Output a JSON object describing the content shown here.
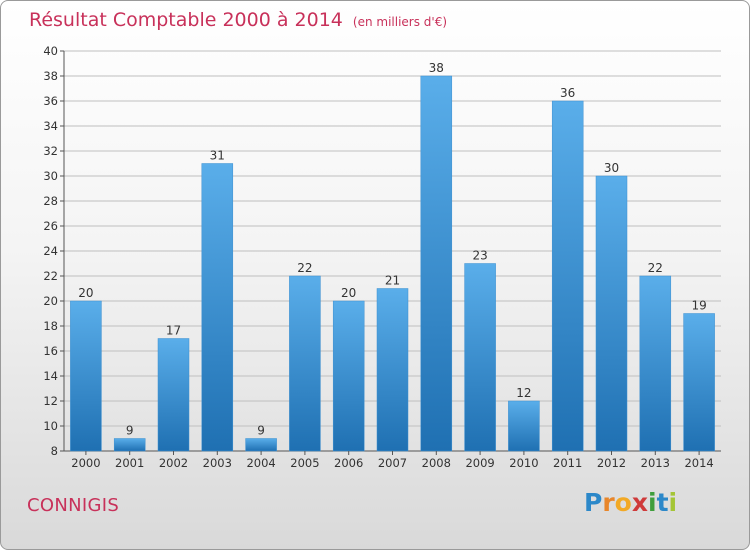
{
  "header": {
    "title": "Résultat Comptable 2000 à 2014",
    "unit": "(en milliers d'€)"
  },
  "footer": {
    "commune": "CONNIGIS",
    "logo_letters": [
      "P",
      "r",
      "o",
      "x",
      "i",
      "t",
      "i"
    ]
  },
  "colors": {
    "title": "#c8315a",
    "bar_top": "#5aaeea",
    "bar_bottom": "#1f70b2",
    "grid": "#bfbfbf"
  },
  "chart_data": {
    "type": "bar",
    "title": "Résultat Comptable 2000 à 2014",
    "subtitle": "(en milliers d'€)",
    "xlabel": "",
    "ylabel": "",
    "categories": [
      "2000",
      "2001",
      "2002",
      "2003",
      "2004",
      "2005",
      "2006",
      "2007",
      "2008",
      "2009",
      "2010",
      "2011",
      "2012",
      "2013",
      "2014"
    ],
    "values": [
      20,
      9,
      17,
      31,
      9,
      22,
      20,
      21,
      38,
      23,
      12,
      36,
      30,
      22,
      19
    ],
    "ylim": [
      8,
      40
    ],
    "yticks": [
      8,
      10,
      12,
      14,
      16,
      18,
      20,
      22,
      24,
      26,
      28,
      30,
      32,
      34,
      36,
      38,
      40
    ],
    "grid": true,
    "legend": "none"
  }
}
